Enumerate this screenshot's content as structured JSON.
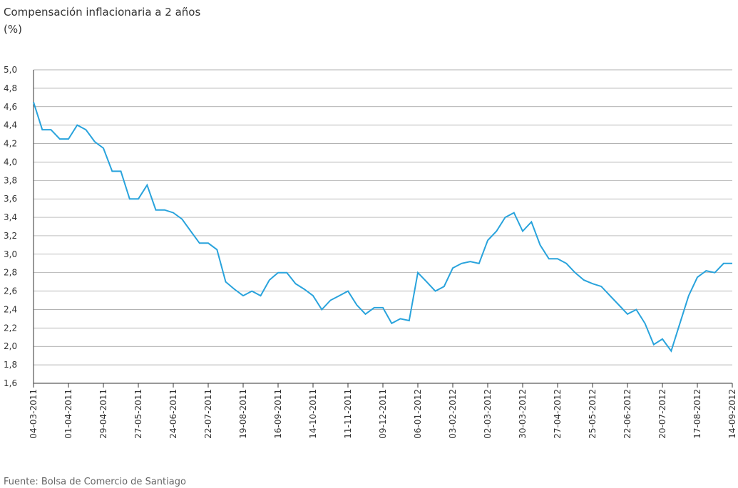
{
  "chart_data": {
    "type": "line",
    "title": "Compensación inflacionaria a 2 años",
    "subtitle": "(%)",
    "source": "Fuente: Bolsa de Comercio de Santiago",
    "grid": true,
    "ylim": [
      1.6,
      5.0
    ],
    "yticks": [
      {
        "value": 1.6,
        "label": "1,6"
      },
      {
        "value": 1.8,
        "label": "1,8"
      },
      {
        "value": 2.0,
        "label": "2,0"
      },
      {
        "value": 2.2,
        "label": "2,2"
      },
      {
        "value": 2.4,
        "label": "2,4"
      },
      {
        "value": 2.6,
        "label": "2,6"
      },
      {
        "value": 2.8,
        "label": "2,8"
      },
      {
        "value": 3.0,
        "label": "3,0"
      },
      {
        "value": 3.2,
        "label": "3,2"
      },
      {
        "value": 3.4,
        "label": "3,4"
      },
      {
        "value": 3.6,
        "label": "3,6"
      },
      {
        "value": 3.8,
        "label": "3,8"
      },
      {
        "value": 4.0,
        "label": "4,0"
      },
      {
        "value": 4.2,
        "label": "4,2"
      },
      {
        "value": 4.4,
        "label": "4,4"
      },
      {
        "value": 4.6,
        "label": "4,6"
      },
      {
        "value": 4.8,
        "label": "4,8"
      },
      {
        "value": 5.0,
        "label": "5,0"
      }
    ],
    "xlim": [
      "04-03-2011",
      "14-09-2012"
    ],
    "xticks": [
      "04-03-2011",
      "01-04-2011",
      "29-04-2011",
      "27-05-2011",
      "24-06-2011",
      "22-07-2011",
      "19-08-2011",
      "16-09-2011",
      "14-10-2011",
      "11-11-2011",
      "09-12-2011",
      "06-01-2012",
      "03-02-2012",
      "02-03-2012",
      "30-03-2012",
      "27-04-2012",
      "25-05-2012",
      "22-06-2012",
      "20-07-2012",
      "17-08-2012",
      "14-09-2012"
    ],
    "x": [
      "04-03-2011",
      "11-03-2011",
      "18-03-2011",
      "25-03-2011",
      "01-04-2011",
      "08-04-2011",
      "15-04-2011",
      "22-04-2011",
      "29-04-2011",
      "06-05-2011",
      "13-05-2011",
      "20-05-2011",
      "27-05-2011",
      "03-06-2011",
      "10-06-2011",
      "17-06-2011",
      "24-06-2011",
      "01-07-2011",
      "08-07-2011",
      "15-07-2011",
      "22-07-2011",
      "29-07-2011",
      "05-08-2011",
      "12-08-2011",
      "19-08-2011",
      "26-08-2011",
      "02-09-2011",
      "09-09-2011",
      "16-09-2011",
      "23-09-2011",
      "30-09-2011",
      "07-10-2011",
      "14-10-2011",
      "21-10-2011",
      "28-10-2011",
      "04-11-2011",
      "11-11-2011",
      "18-11-2011",
      "25-11-2011",
      "02-12-2011",
      "09-12-2011",
      "16-12-2011",
      "23-12-2011",
      "30-12-2011",
      "06-01-2012",
      "13-01-2012",
      "20-01-2012",
      "27-01-2012",
      "03-02-2012",
      "10-02-2012",
      "17-02-2012",
      "24-02-2012",
      "02-03-2012",
      "09-03-2012",
      "16-03-2012",
      "23-03-2012",
      "30-03-2012",
      "06-04-2012",
      "13-04-2012",
      "20-04-2012",
      "27-04-2012",
      "04-05-2012",
      "11-05-2012",
      "18-05-2012",
      "25-05-2012",
      "01-06-2012",
      "08-06-2012",
      "15-06-2012",
      "22-06-2012",
      "29-06-2012",
      "06-07-2012",
      "13-07-2012",
      "20-07-2012",
      "27-07-2012",
      "03-08-2012",
      "10-08-2012",
      "17-08-2012",
      "24-08-2012",
      "31-08-2012",
      "07-09-2012",
      "14-09-2012"
    ],
    "series": [
      {
        "name": "Compensación inflacionaria",
        "color": "#29a3dc",
        "values": [
          4.65,
          4.35,
          4.35,
          4.25,
          4.25,
          4.4,
          4.35,
          4.22,
          4.15,
          3.9,
          3.9,
          3.6,
          3.6,
          3.75,
          3.48,
          3.48,
          3.45,
          3.38,
          3.25,
          3.12,
          3.12,
          3.05,
          2.7,
          2.62,
          2.55,
          2.6,
          2.55,
          2.72,
          2.8,
          2.8,
          2.68,
          2.62,
          2.55,
          2.4,
          2.5,
          2.55,
          2.6,
          2.45,
          2.35,
          2.42,
          2.42,
          2.25,
          2.3,
          2.28,
          2.8,
          2.7,
          2.6,
          2.65,
          2.85,
          2.9,
          2.92,
          2.9,
          3.15,
          3.25,
          3.4,
          3.45,
          3.25,
          3.35,
          3.1,
          2.95,
          2.95,
          2.9,
          2.8,
          2.72,
          2.68,
          2.65,
          2.55,
          2.45,
          2.35,
          2.4,
          2.25,
          2.02,
          2.08,
          1.95,
          2.25,
          2.55,
          2.75,
          2.82,
          2.8,
          2.9,
          2.9
        ]
      }
    ]
  }
}
